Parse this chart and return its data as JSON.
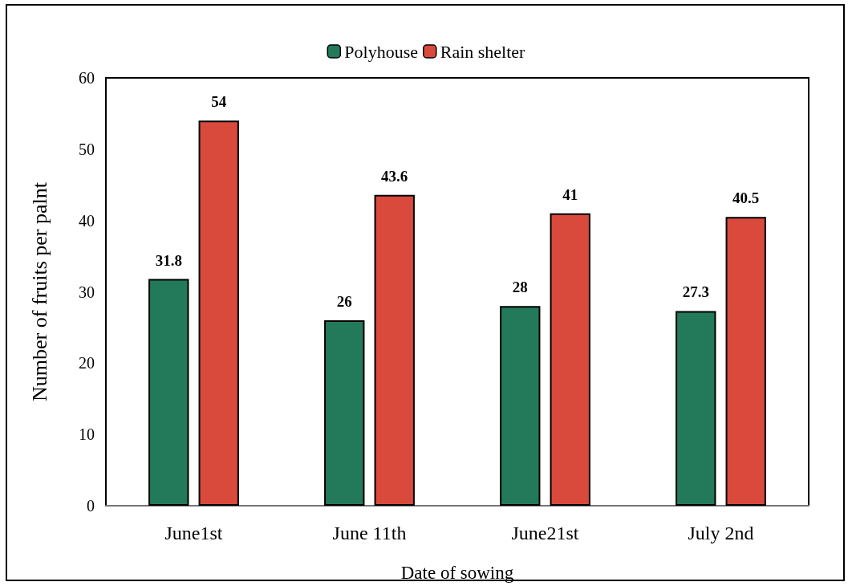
{
  "chart_data": {
    "type": "bar",
    "xlabel": "Date of sowing",
    "ylabel": "Number of fruits per palnt",
    "categories": [
      "June1st",
      "June 11th",
      "June21st",
      "July 2nd"
    ],
    "series": [
      {
        "name": "Polyhouse",
        "color": "#237a5a",
        "values": [
          31.8,
          26,
          28,
          27.3
        ]
      },
      {
        "name": "Rain shelter",
        "color": "#d94a3c",
        "values": [
          54,
          43.6,
          41,
          40.5
        ]
      }
    ],
    "ylim": [
      0,
      60
    ],
    "yticks": [
      0,
      10,
      20,
      30,
      40,
      50,
      60
    ],
    "legend": "top",
    "data_labels": true
  }
}
